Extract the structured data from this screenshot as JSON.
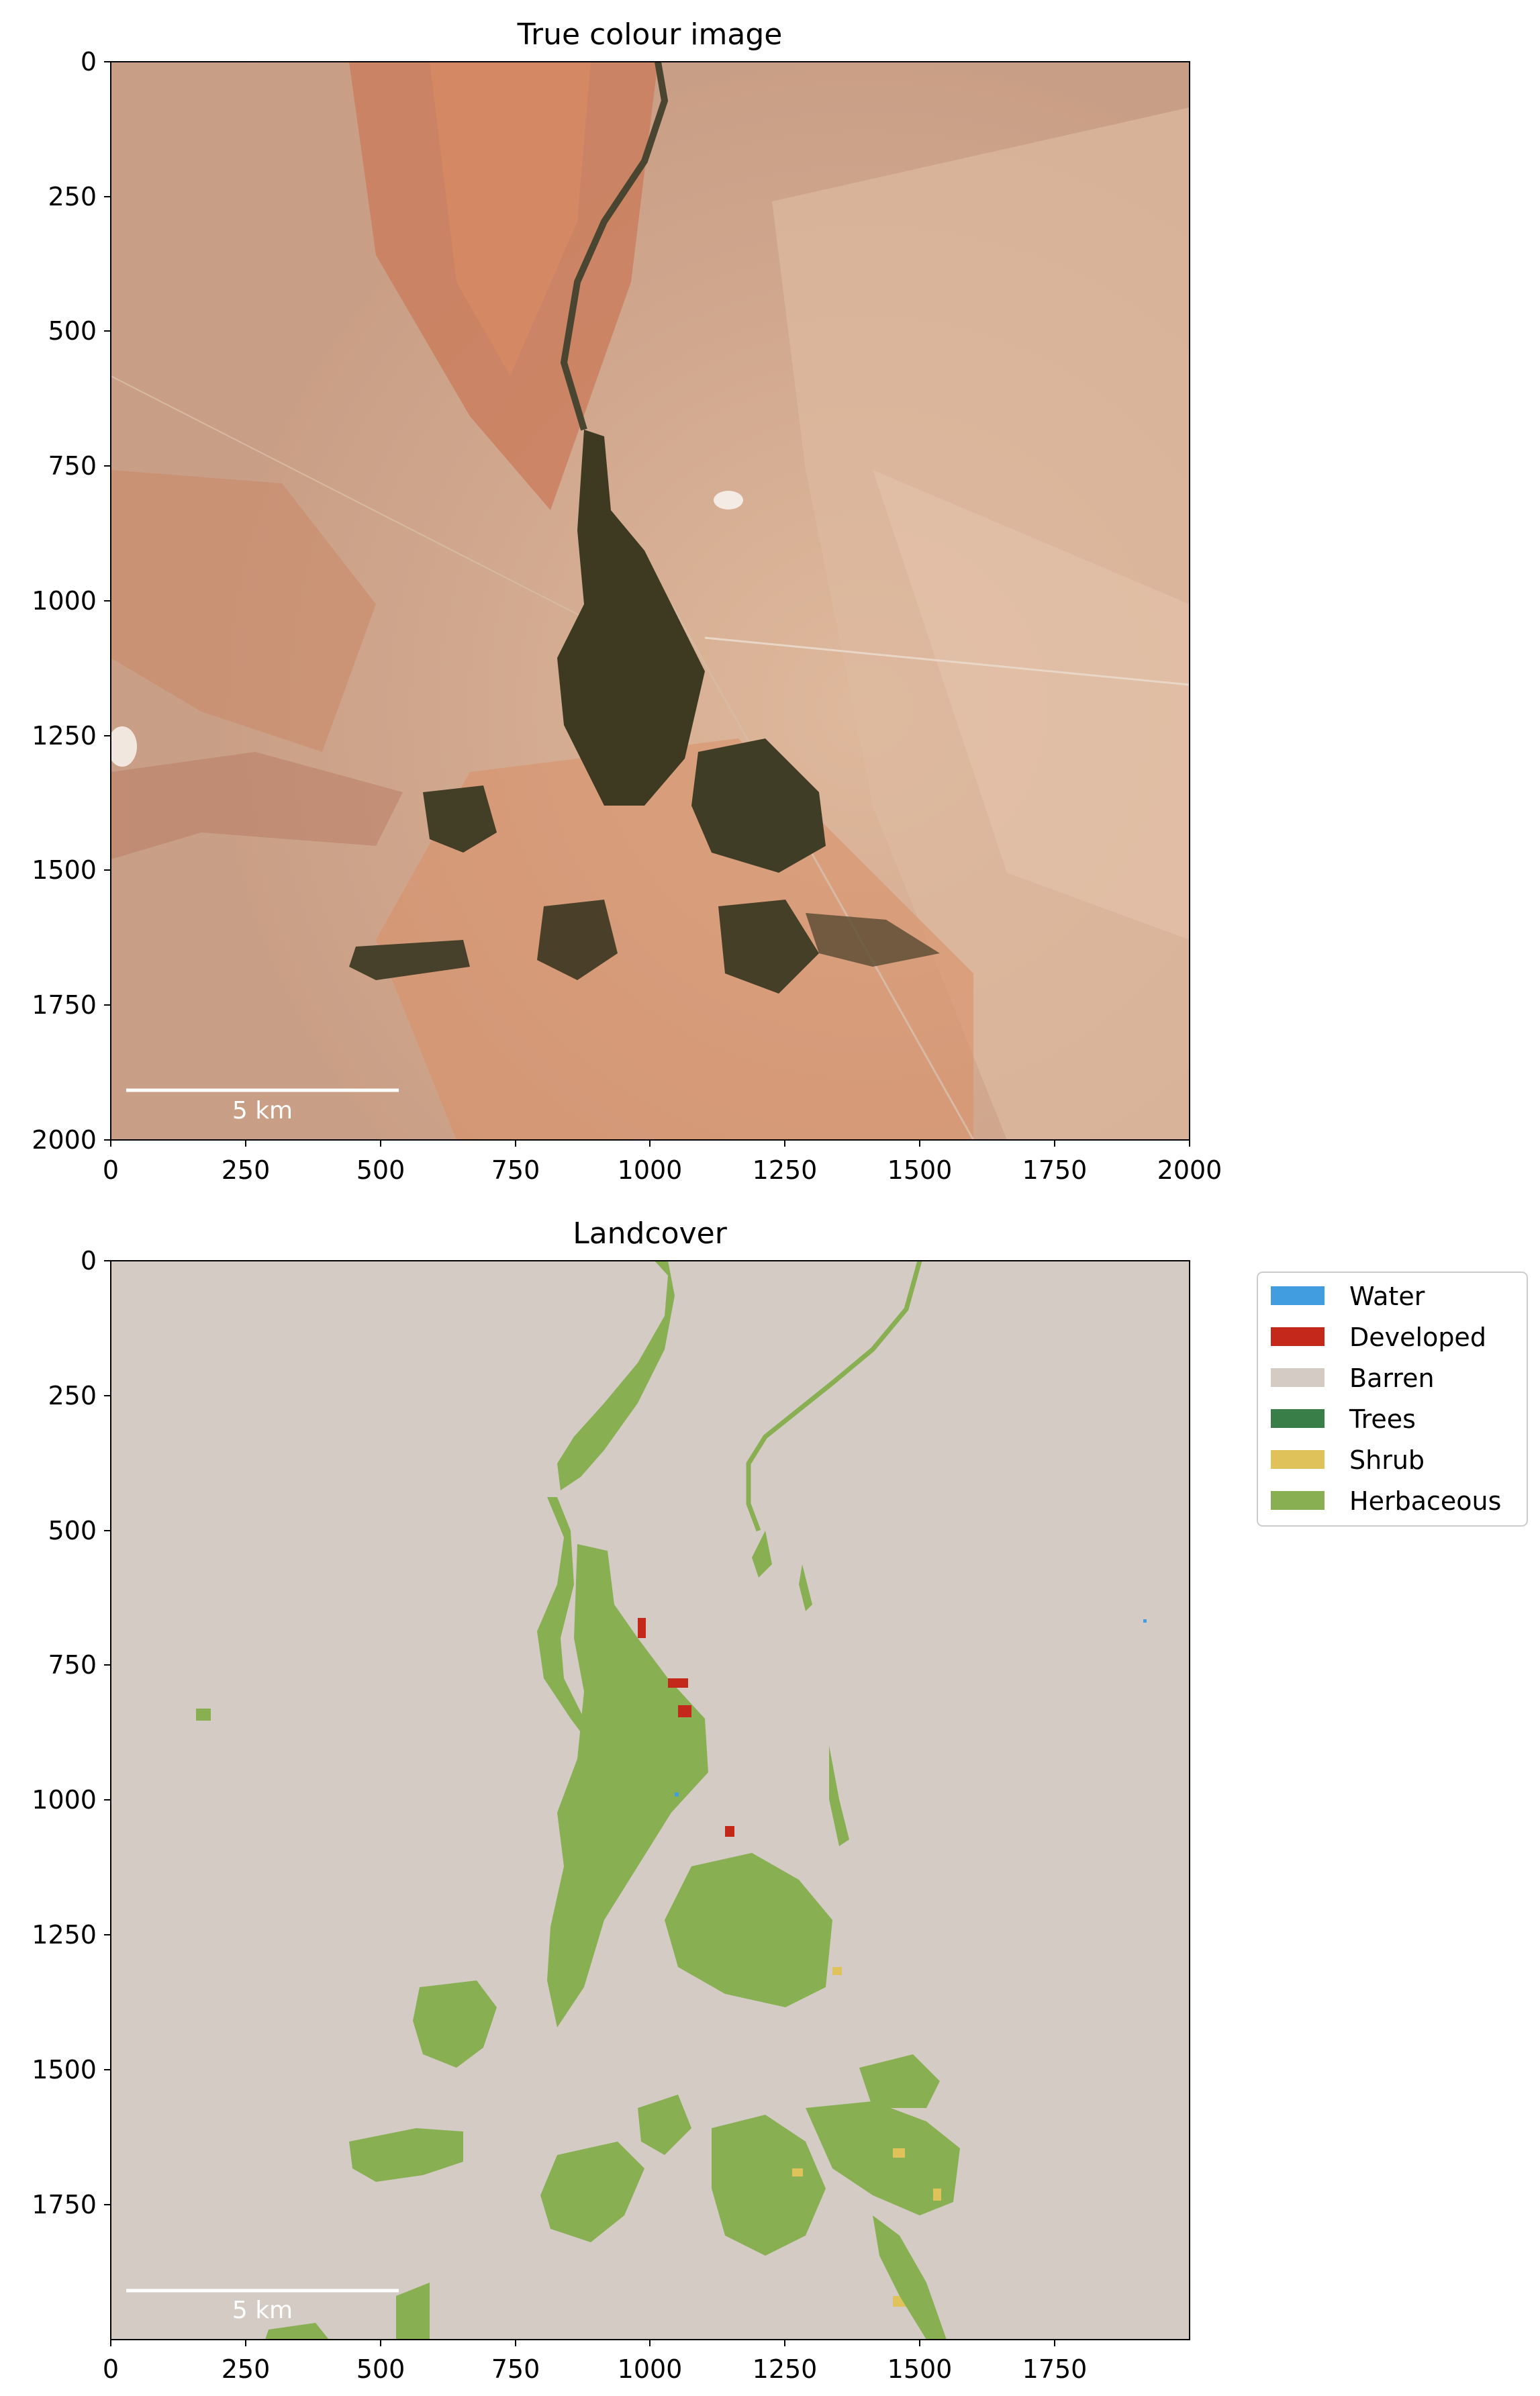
{
  "figure": {
    "panels": [
      {
        "id": "true_colour",
        "title": "True colour image",
        "x_ticks": [
          "0",
          "250",
          "500",
          "750",
          "1000",
          "1250",
          "1500",
          "1750",
          "2000"
        ],
        "y_ticks": [
          "0",
          "250",
          "500",
          "750",
          "1000",
          "1250",
          "1500",
          "1750",
          "2000"
        ],
        "scale_bar": "5 km"
      },
      {
        "id": "landcover",
        "title": "Landcover",
        "x_ticks": [
          "0",
          "250",
          "500",
          "750",
          "1000",
          "1250",
          "1500",
          "1750"
        ],
        "y_ticks": [
          "0",
          "250",
          "500",
          "750",
          "1000",
          "1250",
          "1500",
          "1750"
        ],
        "scale_bar": "5 km"
      }
    ],
    "legend": [
      {
        "label": "Water",
        "color": "#419de0"
      },
      {
        "label": "Developed",
        "color": "#c4281b"
      },
      {
        "label": "Barren",
        "color": "#d4cbc5"
      },
      {
        "label": "Trees",
        "color": "#397d49"
      },
      {
        "label": "Shrub",
        "color": "#dfc35a"
      },
      {
        "label": "Herbaceous",
        "color": "#88b053"
      }
    ]
  }
}
